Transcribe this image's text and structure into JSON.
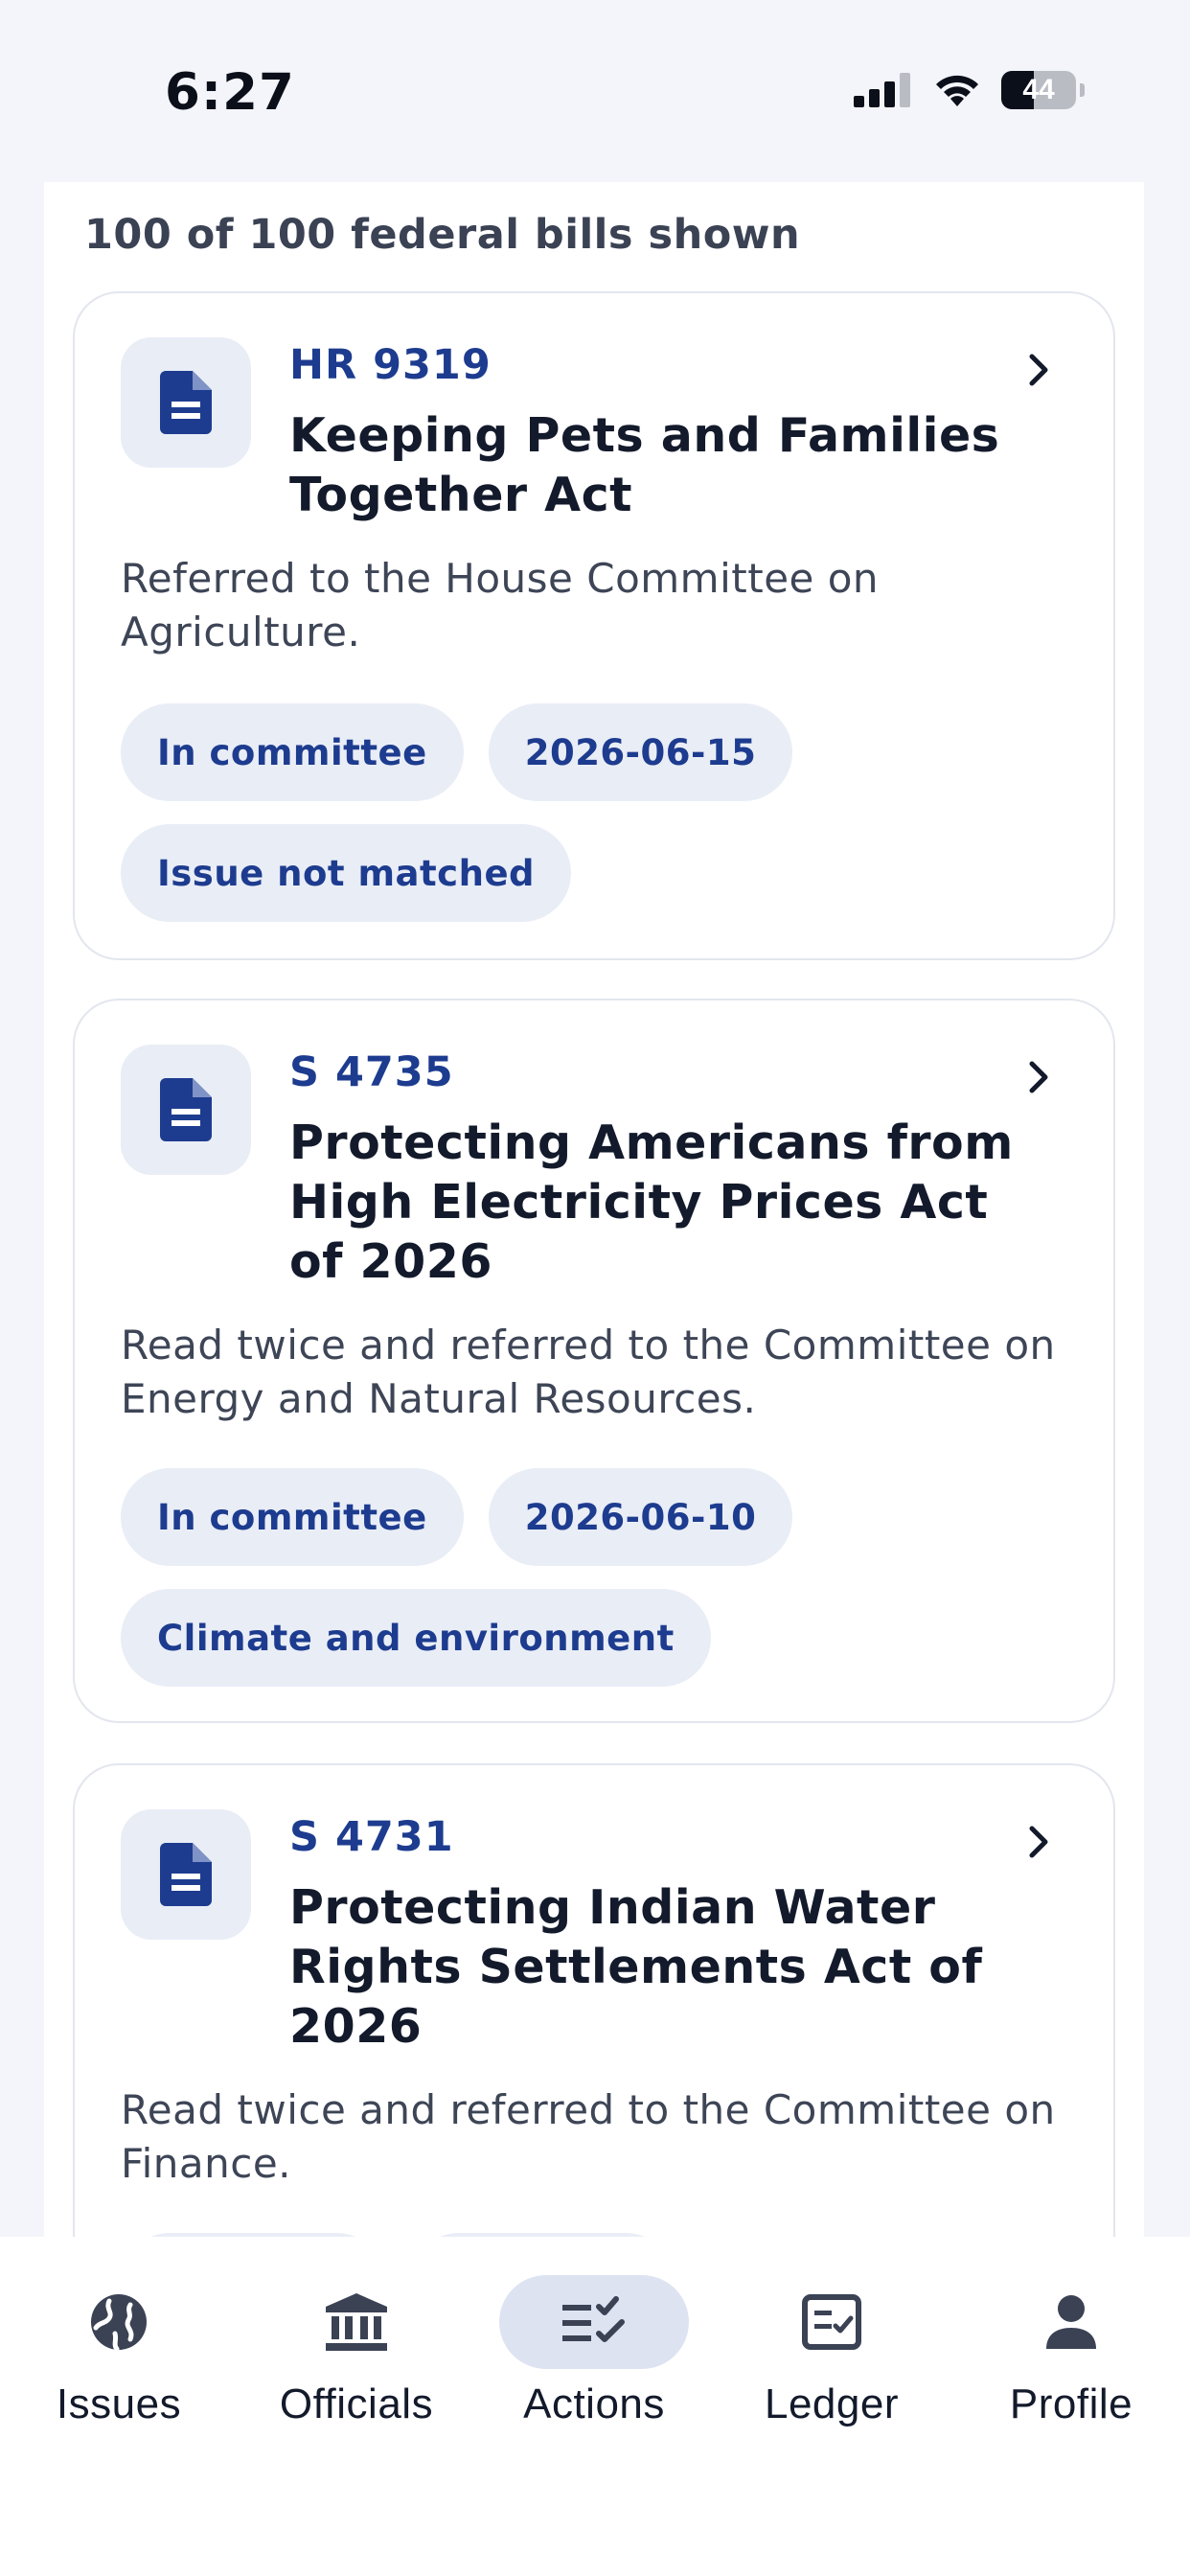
{
  "status_bar": {
    "time": "6:27",
    "battery": "44",
    "battery_level": 0.44
  },
  "list": {
    "count_text": "100 of 100 federal bills shown"
  },
  "bills": [
    {
      "number": "HR 9319",
      "title": "Keeping Pets and Families Together Act",
      "summary": "Referred to the House Committee on Agriculture.",
      "chips": [
        "In committee",
        "2026-06-15",
        "Issue not matched"
      ]
    },
    {
      "number": "S 4735",
      "title": "Protecting Americans from High Electricity Prices Act of 2026",
      "summary": "Read twice and referred to the Committee on Energy and Natural Resources.",
      "chips": [
        "In committee",
        "2026-06-10",
        "Climate and environment"
      ]
    },
    {
      "number": "S 4731",
      "title": "Protecting Indian Water Rights Settlements Act of 2026",
      "summary": "Read twice and referred to the Committee on Finance.",
      "chips": []
    }
  ],
  "nav": {
    "items": [
      {
        "label": "Issues",
        "icon": "globe-icon"
      },
      {
        "label": "Officials",
        "icon": "government-building-icon"
      },
      {
        "label": "Actions",
        "icon": "checklist-icon",
        "active": true
      },
      {
        "label": "Ledger",
        "icon": "ledger-check-icon"
      },
      {
        "label": "Profile",
        "icon": "person-icon"
      }
    ]
  },
  "colors": {
    "accent": "#1d3c8f",
    "chip_bg": "#e9edf6",
    "page_bg": "#f3f5fa"
  }
}
